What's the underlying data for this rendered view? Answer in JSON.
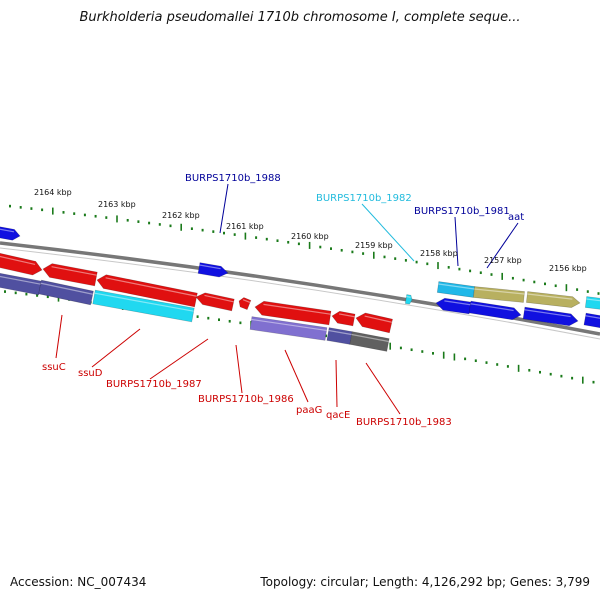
{
  "title": "Burkholderia pseudomallei 1710b chromosome I, complete seque...",
  "footer": {
    "accession": "Accession: NC_007434",
    "topology": "Topology: circular; Length: 4,126,292 bp; Genes: 3,799"
  },
  "colors": {
    "backbone": "#777777",
    "tick": "#1a7a1a",
    "red": "#e01010",
    "blue": "#1010e0",
    "cyan": "#20d8f0",
    "purple": "#5050a0",
    "lavender": "#8070d0",
    "khaki": "#b8b060",
    "gray": "#606060",
    "label_red": "#cc0000",
    "label_blue": "#000099",
    "label_cyan": "#22bbdd"
  },
  "ticks": [
    "2164 kbp",
    "2163 kbp",
    "2162 kbp",
    "2161 kbp",
    "2160 kbp",
    "2159 kbp",
    "2158 kbp",
    "2157 kbp",
    "2156 kbp"
  ],
  "labels": [
    {
      "id": "burps1710b-1988",
      "text": "BURPS1710b_1988",
      "color": "label_blue"
    },
    {
      "id": "burps1710b-1982",
      "text": "BURPS1710b_1982",
      "color": "label_cyan"
    },
    {
      "id": "burps1710b-1981",
      "text": "BURPS1710b_1981",
      "color": "label_blue"
    },
    {
      "id": "aat",
      "text": "aat",
      "color": "label_blue"
    },
    {
      "id": "ssuc",
      "text": "ssuC",
      "color": "label_red"
    },
    {
      "id": "ssud",
      "text": "ssuD",
      "color": "label_red"
    },
    {
      "id": "burps1710b-1987",
      "text": "BURPS1710b_1987",
      "color": "label_red"
    },
    {
      "id": "burps1710b-1986",
      "text": "BURPS1710b_1986",
      "color": "label_red"
    },
    {
      "id": "paag",
      "text": "paaG",
      "color": "label_red"
    },
    {
      "id": "qace",
      "text": "qacE",
      "color": "label_red"
    },
    {
      "id": "burps1710b-1983",
      "text": "BURPS1710b_1983",
      "color": "label_red"
    }
  ]
}
